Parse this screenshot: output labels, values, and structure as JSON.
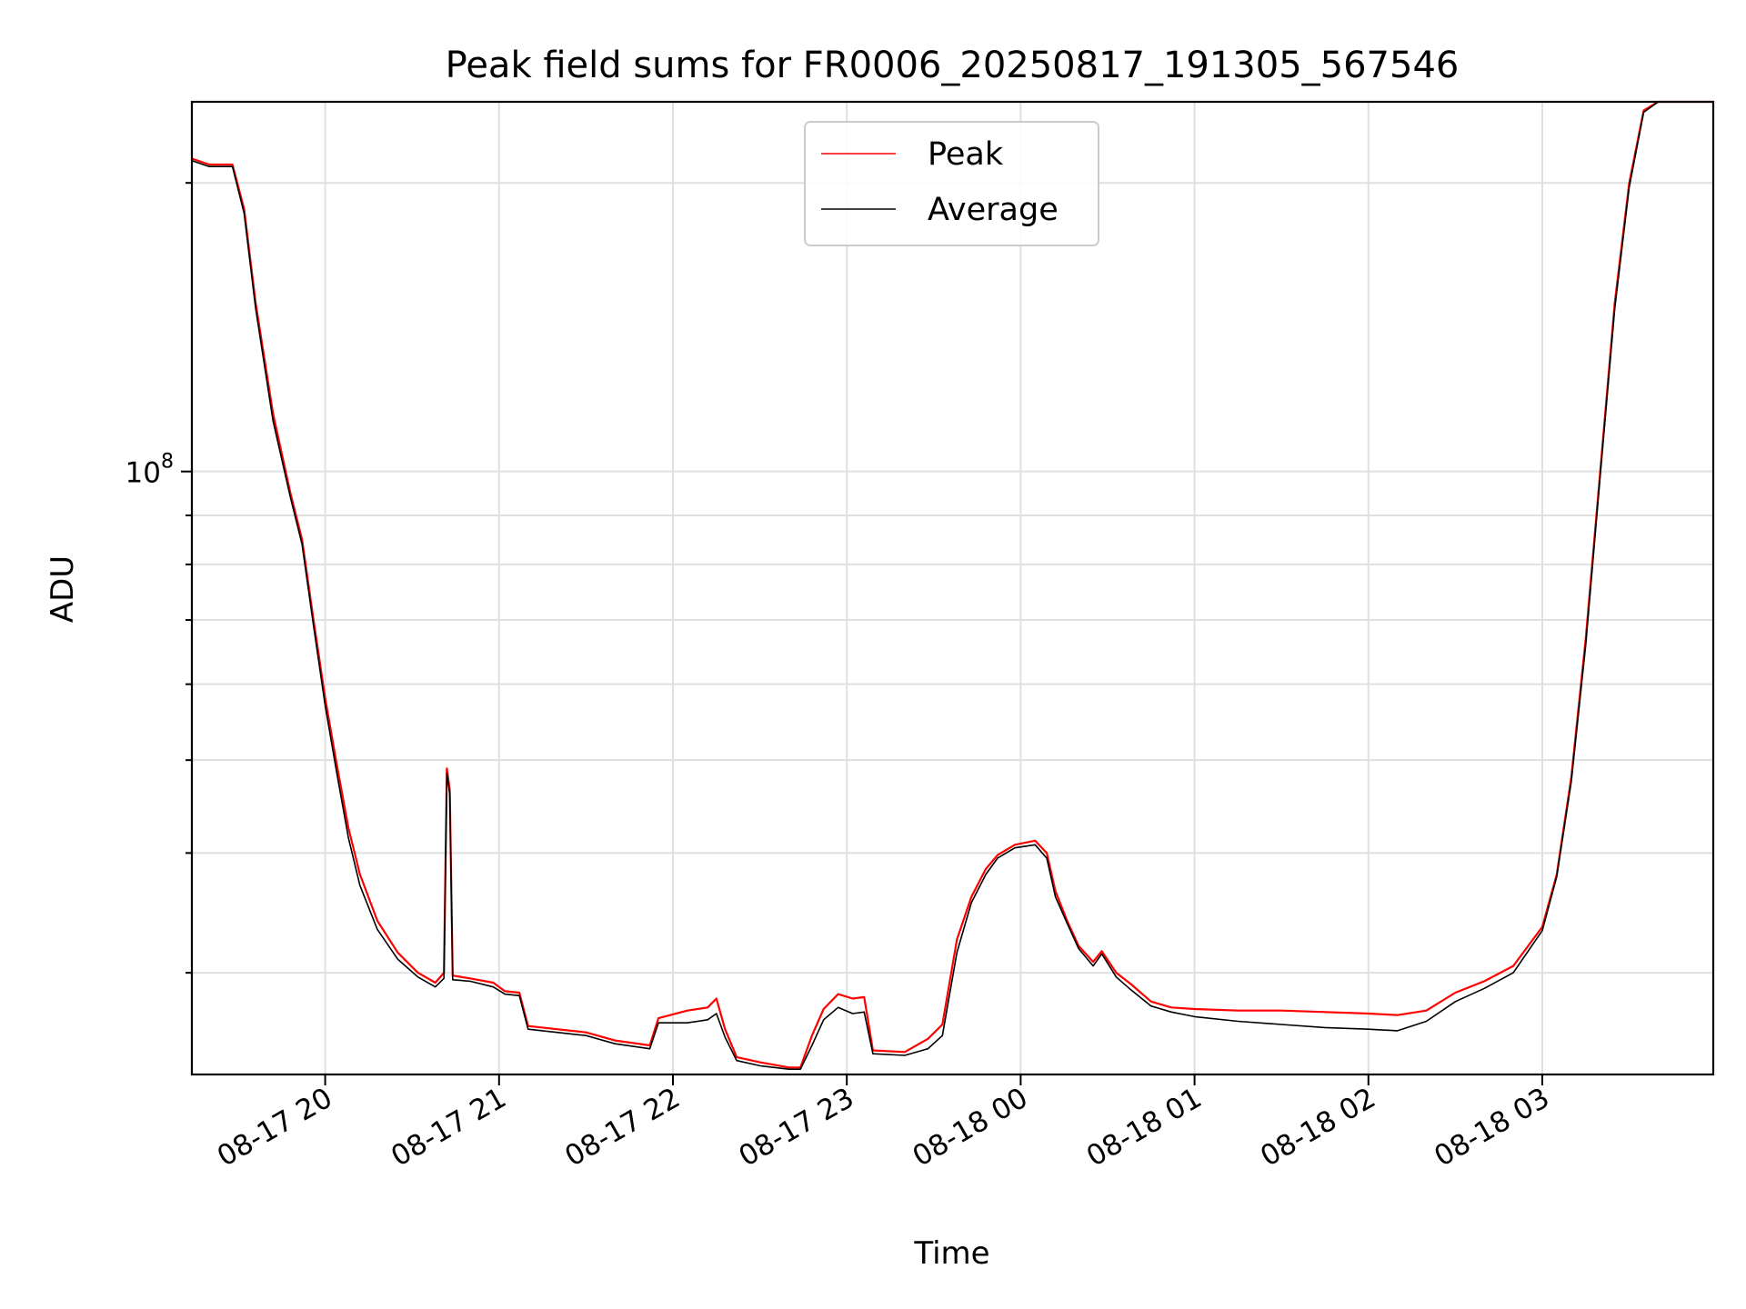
{
  "chart_data": {
    "type": "line",
    "title": "Peak field sums for FR0006_20250817_191305_567546",
    "xlabel": "Time",
    "ylabel": "ADU",
    "yscale": "log",
    "ylim": [
      23500000,
      243000000
    ],
    "xlim": [
      "2025-08-17 19:14",
      "2025-08-18 03:59"
    ],
    "grid": true,
    "legend_position": "top-center",
    "x_ticks": [
      {
        "t": "2025-08-17 20:00",
        "label": "08-17 20"
      },
      {
        "t": "2025-08-17 21:00",
        "label": "08-17 21"
      },
      {
        "t": "2025-08-17 22:00",
        "label": "08-17 22"
      },
      {
        "t": "2025-08-17 23:00",
        "label": "08-17 23"
      },
      {
        "t": "2025-08-18 00:00",
        "label": "08-18 00"
      },
      {
        "t": "2025-08-18 01:00",
        "label": "08-18 01"
      },
      {
        "t": "2025-08-18 02:00",
        "label": "08-18 02"
      },
      {
        "t": "2025-08-18 03:00",
        "label": "08-18 03"
      }
    ],
    "y_major_ticks": [
      {
        "value": 100000000,
        "base": "10",
        "exp": "8"
      }
    ],
    "y_minor_ticks": [
      30000000,
      40000000,
      50000000,
      60000000,
      70000000,
      80000000,
      90000000,
      200000000
    ],
    "series": [
      {
        "name": "Peak",
        "color": "#ff0000",
        "points": [
          [
            "2025-08-17 19:14",
            212000000
          ],
          [
            "2025-08-17 19:20",
            209000000
          ],
          [
            "2025-08-17 19:28",
            209000000
          ],
          [
            "2025-08-17 19:32",
            188000000
          ],
          [
            "2025-08-17 19:36",
            150000000
          ],
          [
            "2025-08-17 19:42",
            115000000
          ],
          [
            "2025-08-17 19:48",
            95000000
          ],
          [
            "2025-08-17 19:52",
            85000000
          ],
          [
            "2025-08-17 19:56",
            70000000
          ],
          [
            "2025-08-17 20:00",
            58000000
          ],
          [
            "2025-08-17 20:04",
            49500000
          ],
          [
            "2025-08-17 20:08",
            42500000
          ],
          [
            "2025-08-17 20:12",
            38000000
          ],
          [
            "2025-08-17 20:18",
            34000000
          ],
          [
            "2025-08-17 20:25",
            31500000
          ],
          [
            "2025-08-17 20:32",
            30000000
          ],
          [
            "2025-08-17 20:38",
            29300000
          ],
          [
            "2025-08-17 20:41",
            30000000
          ],
          [
            "2025-08-17 20:42",
            49000000
          ],
          [
            "2025-08-17 20:43",
            46500000
          ],
          [
            "2025-08-17 20:44",
            29800000
          ],
          [
            "2025-08-17 20:50",
            29600000
          ],
          [
            "2025-08-17 20:58",
            29300000
          ],
          [
            "2025-08-17 21:02",
            28700000
          ],
          [
            "2025-08-17 21:07",
            28600000
          ],
          [
            "2025-08-17 21:10",
            26400000
          ],
          [
            "2025-08-17 21:20",
            26200000
          ],
          [
            "2025-08-17 21:30",
            26000000
          ],
          [
            "2025-08-17 21:40",
            25500000
          ],
          [
            "2025-08-17 21:52",
            25200000
          ],
          [
            "2025-08-17 21:55",
            26900000
          ],
          [
            "2025-08-17 22:05",
            27400000
          ],
          [
            "2025-08-17 22:12",
            27600000
          ],
          [
            "2025-08-17 22:15",
            28200000
          ],
          [
            "2025-08-17 22:18",
            26200000
          ],
          [
            "2025-08-17 22:22",
            24500000
          ],
          [
            "2025-08-17 22:30",
            24200000
          ],
          [
            "2025-08-17 22:40",
            23900000
          ],
          [
            "2025-08-17 22:44",
            23900000
          ],
          [
            "2025-08-17 22:48",
            25800000
          ],
          [
            "2025-08-17 22:52",
            27500000
          ],
          [
            "2025-08-17 22:57",
            28500000
          ],
          [
            "2025-08-17 23:02",
            28200000
          ],
          [
            "2025-08-17 23:06",
            28300000
          ],
          [
            "2025-08-17 23:09",
            24900000
          ],
          [
            "2025-08-17 23:20",
            24800000
          ],
          [
            "2025-08-17 23:28",
            25600000
          ],
          [
            "2025-08-17 23:33",
            26500000
          ],
          [
            "2025-08-17 23:38",
            32500000
          ],
          [
            "2025-08-17 23:43",
            36000000
          ],
          [
            "2025-08-17 23:48",
            38500000
          ],
          [
            "2025-08-17 23:52",
            39800000
          ],
          [
            "2025-08-17 23:58",
            40800000
          ],
          [
            "2025-08-18 00:05",
            41200000
          ],
          [
            "2025-08-18 00:09",
            40000000
          ],
          [
            "2025-08-18 00:12",
            36500000
          ],
          [
            "2025-08-18 00:16",
            34000000
          ],
          [
            "2025-08-18 00:20",
            32000000
          ],
          [
            "2025-08-18 00:25",
            30800000
          ],
          [
            "2025-08-18 00:28",
            31600000
          ],
          [
            "2025-08-18 00:33",
            30000000
          ],
          [
            "2025-08-18 00:38",
            29200000
          ],
          [
            "2025-08-18 00:45",
            28000000
          ],
          [
            "2025-08-18 00:52",
            27600000
          ],
          [
            "2025-08-18 01:00",
            27500000
          ],
          [
            "2025-08-18 01:15",
            27400000
          ],
          [
            "2025-08-18 01:30",
            27400000
          ],
          [
            "2025-08-18 01:45",
            27300000
          ],
          [
            "2025-08-18 02:00",
            27200000
          ],
          [
            "2025-08-18 02:10",
            27100000
          ],
          [
            "2025-08-18 02:20",
            27400000
          ],
          [
            "2025-08-18 02:30",
            28600000
          ],
          [
            "2025-08-18 02:40",
            29400000
          ],
          [
            "2025-08-18 02:50",
            30500000
          ],
          [
            "2025-08-18 03:00",
            33500000
          ],
          [
            "2025-08-18 03:05",
            38000000
          ],
          [
            "2025-08-18 03:10",
            48000000
          ],
          [
            "2025-08-18 03:15",
            67000000
          ],
          [
            "2025-08-18 03:20",
            100000000
          ],
          [
            "2025-08-18 03:25",
            150000000
          ],
          [
            "2025-08-18 03:30",
            200000000
          ],
          [
            "2025-08-18 03:35",
            238000000
          ],
          [
            "2025-08-18 03:40",
            243000000
          ],
          [
            "2025-08-18 03:59",
            243000000
          ]
        ]
      },
      {
        "name": "Average",
        "color": "#000000",
        "points": [
          [
            "2025-08-17 19:14",
            211000000
          ],
          [
            "2025-08-17 19:20",
            208000000
          ],
          [
            "2025-08-17 19:28",
            208000000
          ],
          [
            "2025-08-17 19:32",
            186000000
          ],
          [
            "2025-08-17 19:36",
            148000000
          ],
          [
            "2025-08-17 19:42",
            113000000
          ],
          [
            "2025-08-17 19:48",
            94000000
          ],
          [
            "2025-08-17 19:52",
            84000000
          ],
          [
            "2025-08-17 19:56",
            69000000
          ],
          [
            "2025-08-17 20:00",
            57000000
          ],
          [
            "2025-08-17 20:04",
            48500000
          ],
          [
            "2025-08-17 20:08",
            41500000
          ],
          [
            "2025-08-17 20:12",
            37000000
          ],
          [
            "2025-08-17 20:18",
            33300000
          ],
          [
            "2025-08-17 20:25",
            31000000
          ],
          [
            "2025-08-17 20:32",
            29700000
          ],
          [
            "2025-08-17 20:38",
            29000000
          ],
          [
            "2025-08-17 20:41",
            29600000
          ],
          [
            "2025-08-17 20:42",
            48500000
          ],
          [
            "2025-08-17 20:43",
            46000000
          ],
          [
            "2025-08-17 20:44",
            29500000
          ],
          [
            "2025-08-17 20:50",
            29400000
          ],
          [
            "2025-08-17 20:58",
            29000000
          ],
          [
            "2025-08-17 21:02",
            28500000
          ],
          [
            "2025-08-17 21:07",
            28400000
          ],
          [
            "2025-08-17 21:10",
            26200000
          ],
          [
            "2025-08-17 21:20",
            26000000
          ],
          [
            "2025-08-17 21:30",
            25800000
          ],
          [
            "2025-08-17 21:40",
            25300000
          ],
          [
            "2025-08-17 21:52",
            25000000
          ],
          [
            "2025-08-17 21:55",
            26600000
          ],
          [
            "2025-08-17 22:05",
            26600000
          ],
          [
            "2025-08-17 22:12",
            26800000
          ],
          [
            "2025-08-17 22:15",
            27200000
          ],
          [
            "2025-08-17 22:18",
            25700000
          ],
          [
            "2025-08-17 22:22",
            24300000
          ],
          [
            "2025-08-17 22:30",
            24000000
          ],
          [
            "2025-08-17 22:40",
            23800000
          ],
          [
            "2025-08-17 22:44",
            23800000
          ],
          [
            "2025-08-17 22:48",
            25200000
          ],
          [
            "2025-08-17 22:52",
            26800000
          ],
          [
            "2025-08-17 22:57",
            27600000
          ],
          [
            "2025-08-17 23:02",
            27200000
          ],
          [
            "2025-08-17 23:06",
            27300000
          ],
          [
            "2025-08-17 23:09",
            24700000
          ],
          [
            "2025-08-17 23:20",
            24600000
          ],
          [
            "2025-08-17 23:28",
            25000000
          ],
          [
            "2025-08-17 23:33",
            25800000
          ],
          [
            "2025-08-17 23:38",
            31500000
          ],
          [
            "2025-08-17 23:43",
            35500000
          ],
          [
            "2025-08-17 23:48",
            38000000
          ],
          [
            "2025-08-17 23:52",
            39500000
          ],
          [
            "2025-08-17 23:58",
            40500000
          ],
          [
            "2025-08-18 00:05",
            40800000
          ],
          [
            "2025-08-18 00:09",
            39500000
          ],
          [
            "2025-08-18 00:12",
            36000000
          ],
          [
            "2025-08-18 00:16",
            33800000
          ],
          [
            "2025-08-18 00:20",
            31800000
          ],
          [
            "2025-08-18 00:25",
            30500000
          ],
          [
            "2025-08-18 00:28",
            31400000
          ],
          [
            "2025-08-18 00:33",
            29700000
          ],
          [
            "2025-08-18 00:38",
            28800000
          ],
          [
            "2025-08-18 00:45",
            27700000
          ],
          [
            "2025-08-18 00:52",
            27300000
          ],
          [
            "2025-08-18 01:00",
            27000000
          ],
          [
            "2025-08-18 01:15",
            26700000
          ],
          [
            "2025-08-18 01:30",
            26500000
          ],
          [
            "2025-08-18 01:45",
            26300000
          ],
          [
            "2025-08-18 02:00",
            26200000
          ],
          [
            "2025-08-18 02:10",
            26100000
          ],
          [
            "2025-08-18 02:20",
            26700000
          ],
          [
            "2025-08-18 02:30",
            28000000
          ],
          [
            "2025-08-18 02:40",
            28900000
          ],
          [
            "2025-08-18 02:50",
            30000000
          ],
          [
            "2025-08-18 03:00",
            33200000
          ],
          [
            "2025-08-18 03:05",
            37800000
          ],
          [
            "2025-08-18 03:10",
            47500000
          ],
          [
            "2025-08-18 03:15",
            66000000
          ],
          [
            "2025-08-18 03:20",
            99000000
          ],
          [
            "2025-08-18 03:25",
            148000000
          ],
          [
            "2025-08-18 03:30",
            198000000
          ],
          [
            "2025-08-18 03:35",
            237000000
          ],
          [
            "2025-08-18 03:40",
            243000000
          ],
          [
            "2025-08-18 03:59",
            243000000
          ]
        ]
      }
    ]
  }
}
